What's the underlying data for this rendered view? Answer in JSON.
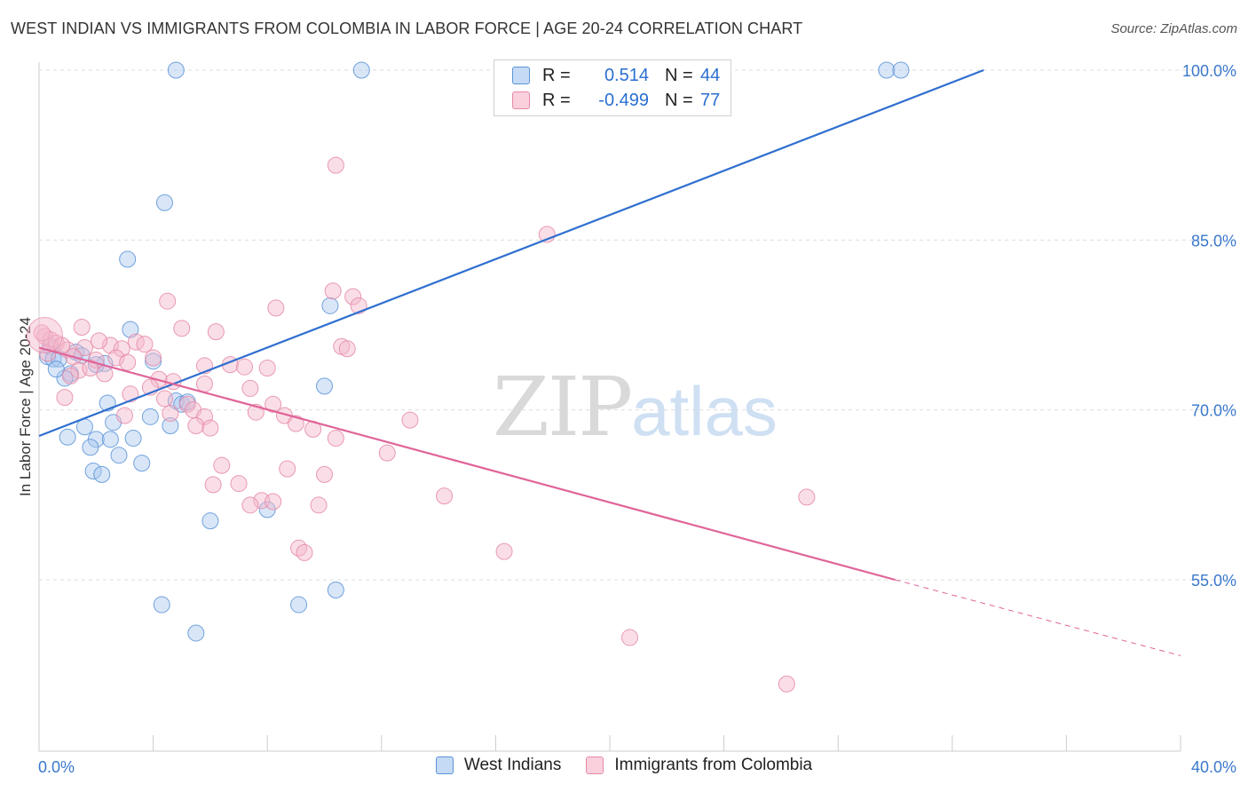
{
  "title": "WEST INDIAN VS IMMIGRANTS FROM COLOMBIA IN LABOR FORCE | AGE 20-24 CORRELATION CHART",
  "source": "Source: ZipAtlas.com",
  "watermark": {
    "zip": "ZIP",
    "atlas": "atlas"
  },
  "legend": {
    "r_label": "R =",
    "n_label": "N =",
    "series": [
      {
        "name": "West Indians",
        "r": "0.514",
        "n": "44"
      },
      {
        "name": "Immigrants from Colombia",
        "r": "-0.499",
        "n": "77"
      }
    ]
  },
  "colors": {
    "blue_fill": "#a9c8ef",
    "blue_stroke": "#5b93d6",
    "blue_line": "#2f6fcf",
    "pink_fill": "#f4b6c9",
    "pink_stroke": "#e58aa7",
    "pink_line": "#e0649a",
    "tick_label": "#3a78cc",
    "grid": "#dddddd"
  },
  "chart_data": {
    "type": "scatter",
    "title": "WEST INDIAN VS IMMIGRANTS FROM COLOMBIA IN LABOR FORCE | AGE 20-24 CORRELATION CHART",
    "xlabel": "",
    "ylabel": "In Labor Force | Age 20-24",
    "xlim": [
      0,
      40
    ],
    "ylim": [
      40,
      102
    ],
    "x_tick_labels": [
      "0.0%",
      "40.0%"
    ],
    "y_ticks": [
      55,
      70,
      85,
      100
    ],
    "y_tick_labels": [
      "55.0%",
      "70.0%",
      "85.0%",
      "100.0%"
    ],
    "grid": true,
    "legend_placement": "top-center",
    "series": [
      {
        "name": "West Indians",
        "color": "#a9c8ef",
        "points": [
          [
            4.8,
            100.0
          ],
          [
            11.3,
            100.0
          ],
          [
            29.7,
            100.0
          ],
          [
            30.2,
            100.0
          ],
          [
            4.4,
            88.3
          ],
          [
            3.1,
            83.3
          ],
          [
            10.2,
            79.2
          ],
          [
            3.2,
            77.1
          ],
          [
            0.4,
            75.6
          ],
          [
            1.3,
            75.1
          ],
          [
            0.3,
            74.7
          ],
          [
            0.5,
            74.5
          ],
          [
            0.7,
            74.5
          ],
          [
            2.3,
            74.1
          ],
          [
            4.0,
            74.3
          ],
          [
            1.1,
            73.2
          ],
          [
            0.9,
            72.8
          ],
          [
            10.0,
            72.1
          ],
          [
            2.4,
            70.6
          ],
          [
            4.8,
            70.8
          ],
          [
            5.0,
            70.5
          ],
          [
            5.2,
            70.7
          ],
          [
            3.9,
            69.4
          ],
          [
            4.6,
            68.6
          ],
          [
            1.6,
            68.5
          ],
          [
            2.6,
            68.9
          ],
          [
            3.3,
            67.5
          ],
          [
            2.0,
            67.4
          ],
          [
            1.0,
            67.6
          ],
          [
            2.5,
            67.4
          ],
          [
            1.8,
            66.7
          ],
          [
            2.8,
            66.0
          ],
          [
            3.6,
            65.3
          ],
          [
            1.9,
            64.6
          ],
          [
            2.2,
            64.3
          ],
          [
            6.0,
            60.2
          ],
          [
            8.0,
            61.2
          ],
          [
            10.4,
            54.1
          ],
          [
            4.3,
            52.8
          ],
          [
            9.1,
            52.8
          ],
          [
            5.5,
            50.3
          ],
          [
            2.0,
            74.0
          ],
          [
            0.6,
            73.6
          ],
          [
            1.5,
            74.8
          ]
        ]
      },
      {
        "name": "Immigrants from Colombia",
        "color": "#f4b6c9",
        "points": [
          [
            10.4,
            91.6
          ],
          [
            17.8,
            85.5
          ],
          [
            4.5,
            79.6
          ],
          [
            10.3,
            80.5
          ],
          [
            11.0,
            80.0
          ],
          [
            8.3,
            79.0
          ],
          [
            11.2,
            79.2
          ],
          [
            1.5,
            77.3
          ],
          [
            5.0,
            77.2
          ],
          [
            6.2,
            76.9
          ],
          [
            0.2,
            76.5
          ],
          [
            0.4,
            76.2
          ],
          [
            0.6,
            75.9
          ],
          [
            1.0,
            75.3
          ],
          [
            1.6,
            75.5
          ],
          [
            2.5,
            75.7
          ],
          [
            3.4,
            76.0
          ],
          [
            3.7,
            75.8
          ],
          [
            10.6,
            75.6
          ],
          [
            10.8,
            75.4
          ],
          [
            2.9,
            75.4
          ],
          [
            1.2,
            74.7
          ],
          [
            2.0,
            74.4
          ],
          [
            2.7,
            74.6
          ],
          [
            3.1,
            74.2
          ],
          [
            4.0,
            74.6
          ],
          [
            5.8,
            73.9
          ],
          [
            6.7,
            74.0
          ],
          [
            7.2,
            73.8
          ],
          [
            8.0,
            73.7
          ],
          [
            1.4,
            73.5
          ],
          [
            1.8,
            73.7
          ],
          [
            1.1,
            73.0
          ],
          [
            2.3,
            73.2
          ],
          [
            4.2,
            72.7
          ],
          [
            4.7,
            72.5
          ],
          [
            3.9,
            72.0
          ],
          [
            5.8,
            72.3
          ],
          [
            7.4,
            71.9
          ],
          [
            3.2,
            71.4
          ],
          [
            0.9,
            71.1
          ],
          [
            4.4,
            71.0
          ],
          [
            5.2,
            70.5
          ],
          [
            8.2,
            70.5
          ],
          [
            5.4,
            70.0
          ],
          [
            7.6,
            69.8
          ],
          [
            8.6,
            69.5
          ],
          [
            13.0,
            69.1
          ],
          [
            4.6,
            69.7
          ],
          [
            5.8,
            69.4
          ],
          [
            3.0,
            69.5
          ],
          [
            9.0,
            68.8
          ],
          [
            9.6,
            68.3
          ],
          [
            5.5,
            68.6
          ],
          [
            6.0,
            68.4
          ],
          [
            10.4,
            67.5
          ],
          [
            12.2,
            66.2
          ],
          [
            6.4,
            65.1
          ],
          [
            8.7,
            64.8
          ],
          [
            10.0,
            64.3
          ],
          [
            6.1,
            63.4
          ],
          [
            7.0,
            63.5
          ],
          [
            14.2,
            62.4
          ],
          [
            26.9,
            62.3
          ],
          [
            7.8,
            62.0
          ],
          [
            7.4,
            61.6
          ],
          [
            8.2,
            61.9
          ],
          [
            9.8,
            61.6
          ],
          [
            9.1,
            57.8
          ],
          [
            9.3,
            57.4
          ],
          [
            16.3,
            57.5
          ],
          [
            20.7,
            49.9
          ],
          [
            26.2,
            45.8
          ],
          [
            0.1,
            76.8
          ],
          [
            0.3,
            75.0
          ],
          [
            0.8,
            75.7
          ],
          [
            2.1,
            76.1
          ]
        ]
      }
    ],
    "trend_lines": [
      {
        "series": "West Indians",
        "x": [
          0.0,
          33.1
        ],
        "y": [
          67.7,
          100.0
        ],
        "style": "solid"
      },
      {
        "series": "Immigrants from Colombia",
        "x": [
          0.0,
          30.0
        ],
        "y": [
          75.5,
          55.0
        ],
        "style": "solid"
      },
      {
        "series": "Immigrants from Colombia",
        "x": [
          30.0,
          40.0
        ],
        "y": [
          55.0,
          48.3
        ],
        "style": "dashed"
      }
    ]
  }
}
